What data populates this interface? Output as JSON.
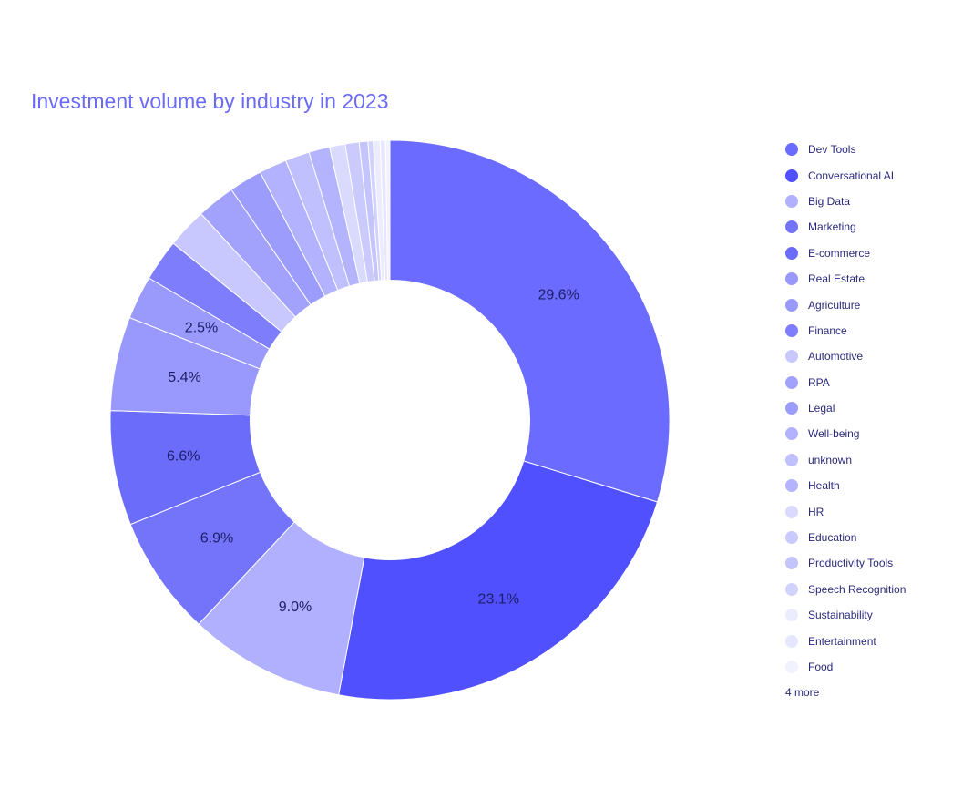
{
  "chart_data": {
    "type": "pie",
    "hole": 0.5,
    "title": "Investment volume by industry in 2023",
    "slices": [
      {
        "label": "Dev Tools",
        "value": 29.6,
        "color": "#6b6bff",
        "text": "29.6%"
      },
      {
        "label": "Conversational AI",
        "value": 23.1,
        "color": "#5050ff",
        "text": "23.1%"
      },
      {
        "label": "Big Data",
        "value": 9.0,
        "color": "#b0b0ff",
        "text": "9.0%"
      },
      {
        "label": "Marketing",
        "value": 6.9,
        "color": "#7474fb",
        "text": "6.9%"
      },
      {
        "label": "E-commerce",
        "value": 6.6,
        "color": "#6c6cfb",
        "text": "6.6%"
      },
      {
        "label": "Real Estate",
        "value": 5.4,
        "color": "#9898fd",
        "text": "5.4%"
      },
      {
        "label": "Agriculture",
        "value": 2.5,
        "color": "#9a9afd",
        "text": "2.5%"
      },
      {
        "label": "Finance",
        "value": 2.4,
        "color": "#7e7efc",
        "text": ""
      },
      {
        "label": "Automotive",
        "value": 2.3,
        "color": "#c8c8fe",
        "text": ""
      },
      {
        "label": "RPA",
        "value": 2.2,
        "color": "#a2a2fd",
        "text": ""
      },
      {
        "label": "Legal",
        "value": 1.9,
        "color": "#9c9cfd",
        "text": ""
      },
      {
        "label": "Well-being",
        "value": 1.6,
        "color": "#b2b2fe",
        "text": ""
      },
      {
        "label": "unknown",
        "value": 1.4,
        "color": "#c0c0fe",
        "text": ""
      },
      {
        "label": "Health",
        "value": 1.2,
        "color": "#b4b4fe",
        "text": ""
      },
      {
        "label": "HR",
        "value": 0.9,
        "color": "#dadaff",
        "text": ""
      },
      {
        "label": "Education",
        "value": 0.8,
        "color": "#cacaff",
        "text": ""
      },
      {
        "label": "Productivity Tools",
        "value": 0.5,
        "color": "#c4c4fe",
        "text": ""
      },
      {
        "label": "Speech Recognition",
        "value": 0.3,
        "color": "#d2d2ff",
        "text": ""
      },
      {
        "label": "Sustainability",
        "value": 0.4,
        "color": "#ececff",
        "text": ""
      },
      {
        "label": "Entertainment",
        "value": 0.3,
        "color": "#e6e6ff",
        "text": ""
      },
      {
        "label": "Food",
        "value": 0.25,
        "color": "#f2f2ff",
        "text": ""
      }
    ],
    "legend": {
      "placement": "right",
      "more_label": "4 more"
    }
  }
}
